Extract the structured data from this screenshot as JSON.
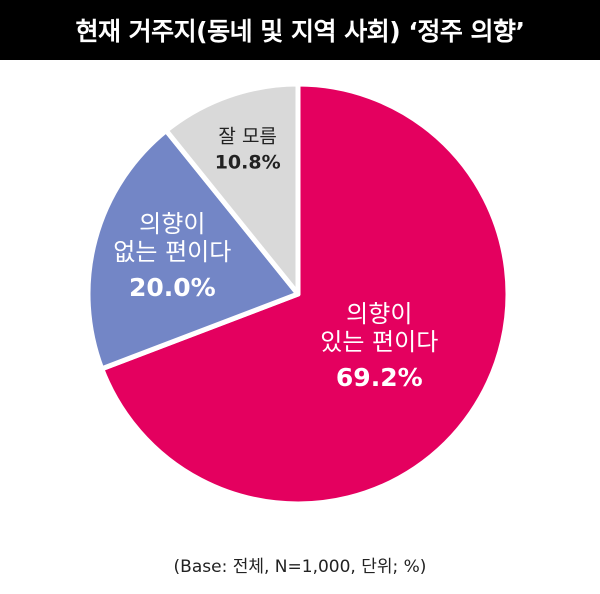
{
  "header": {
    "title": "현재 거주지(동네 및 지역 사회) ‘정주 의향’"
  },
  "footnote": "(Base: 전체, N=1,000, 단위; %)",
  "chart_data": {
    "type": "pie",
    "title": "현재 거주지(동네 및 지역 사회) ‘정주 의향’",
    "slices": [
      {
        "label": [
          "의향이",
          "있는 편이다"
        ],
        "value": 69.2,
        "value_label": "69.2%",
        "color": "#e4005f",
        "label_color": "#ffffff"
      },
      {
        "label": [
          "의향이",
          "없는 편이다"
        ],
        "value": 20.0,
        "value_label": "20.0%",
        "color": "#7386c6",
        "label_color": "#ffffff"
      },
      {
        "label": [
          "잘 모름"
        ],
        "value": 10.8,
        "value_label": "10.8%",
        "color": "#d9d9d9",
        "label_color": "#222222"
      }
    ],
    "start_angle": "12 o'clock",
    "direction": "clockwise",
    "border_color": "#ffffff",
    "legend": "none"
  }
}
